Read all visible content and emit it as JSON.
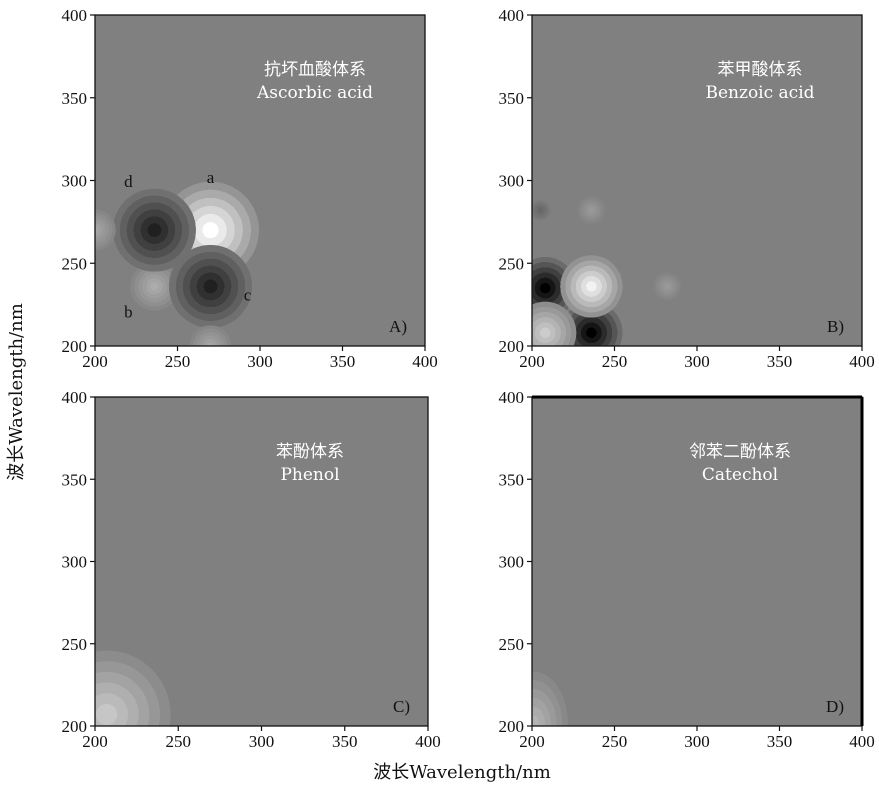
{
  "axes": {
    "xlabel": "波长Wavelength/nm",
    "ylabel": "波长Wavelength/nm"
  },
  "chart_data": [
    {
      "type": "heatmap",
      "panel_label": "A)",
      "title_cn": "抗坏血酸体系",
      "title_en": "Ascorbic acid",
      "xlim": [
        200,
        400
      ],
      "ylim": [
        200,
        400
      ],
      "x_ticks": [
        "200",
        "250",
        "300",
        "350",
        "400"
      ],
      "y_ticks": [
        "200",
        "250",
        "300",
        "350",
        "400"
      ],
      "peaks": [
        {
          "label": "a",
          "x": 270,
          "y": 270,
          "sign": "positive",
          "intensity": 1.0,
          "spread": 14
        },
        {
          "label": "b",
          "x": 236,
          "y": 236,
          "sign": "positive",
          "intensity": 0.35,
          "spread": 7
        },
        {
          "label": "c",
          "x": 270,
          "y": 236,
          "sign": "negative",
          "intensity": 0.75,
          "spread": 12
        },
        {
          "label": "d",
          "x": 236,
          "y": 270,
          "sign": "negative",
          "intensity": 0.75,
          "spread": 12
        },
        {
          "label": "",
          "x": 200,
          "y": 270,
          "sign": "positive",
          "intensity": 0.3,
          "spread": 6
        },
        {
          "label": "",
          "x": 270,
          "y": 200,
          "sign": "positive",
          "intensity": 0.3,
          "spread": 6
        }
      ]
    },
    {
      "type": "heatmap",
      "panel_label": "B)",
      "title_cn": "苯甲酸体系",
      "title_en": "Benzoic acid",
      "xlim": [
        200,
        400
      ],
      "ylim": [
        200,
        400
      ],
      "x_ticks": [
        "200",
        "250",
        "300",
        "350",
        "400"
      ],
      "y_ticks": [
        "200",
        "250",
        "300",
        "350",
        "400"
      ],
      "peaks": [
        {
          "label": "",
          "x": 208,
          "y": 235,
          "sign": "negative",
          "intensity": 1.0,
          "spread": 9
        },
        {
          "label": "",
          "x": 236,
          "y": 208,
          "sign": "negative",
          "intensity": 1.0,
          "spread": 9
        },
        {
          "label": "",
          "x": 236,
          "y": 236,
          "sign": "positive",
          "intensity": 0.9,
          "spread": 9
        },
        {
          "label": "",
          "x": 208,
          "y": 208,
          "sign": "positive",
          "intensity": 0.6,
          "spread": 9
        },
        {
          "label": "",
          "x": 236,
          "y": 282,
          "sign": "positive",
          "intensity": 0.2,
          "spread": 4
        },
        {
          "label": "",
          "x": 205,
          "y": 282,
          "sign": "negative",
          "intensity": 0.2,
          "spread": 3
        },
        {
          "label": "",
          "x": 282,
          "y": 236,
          "sign": "positive",
          "intensity": 0.2,
          "spread": 4
        }
      ]
    },
    {
      "type": "heatmap",
      "panel_label": "C)",
      "title_cn": "苯酚体系",
      "title_en": "Phenol",
      "xlim": [
        200,
        400
      ],
      "ylim": [
        200,
        400
      ],
      "x_ticks": [
        "200",
        "250",
        "300",
        "350",
        "400"
      ],
      "y_ticks": [
        "200",
        "250",
        "300",
        "350",
        "400"
      ],
      "peaks": [
        {
          "label": "",
          "x": 207,
          "y": 207,
          "sign": "positive",
          "intensity": 0.55,
          "spread": 12
        }
      ]
    },
    {
      "type": "heatmap",
      "panel_label": "D)",
      "title_cn": "邻苯二酚体系",
      "title_en": "Catechol",
      "xlim": [
        200,
        400
      ],
      "ylim": [
        200,
        400
      ],
      "x_ticks": [
        "200",
        "250",
        "300",
        "350",
        "400"
      ],
      "y_ticks": [
        "200",
        "250",
        "300",
        "350",
        "400"
      ],
      "peaks": [
        {
          "label": "",
          "x": 201,
          "y": 201,
          "sign": "positive",
          "intensity": 0.4,
          "spread": 8
        }
      ]
    }
  ]
}
